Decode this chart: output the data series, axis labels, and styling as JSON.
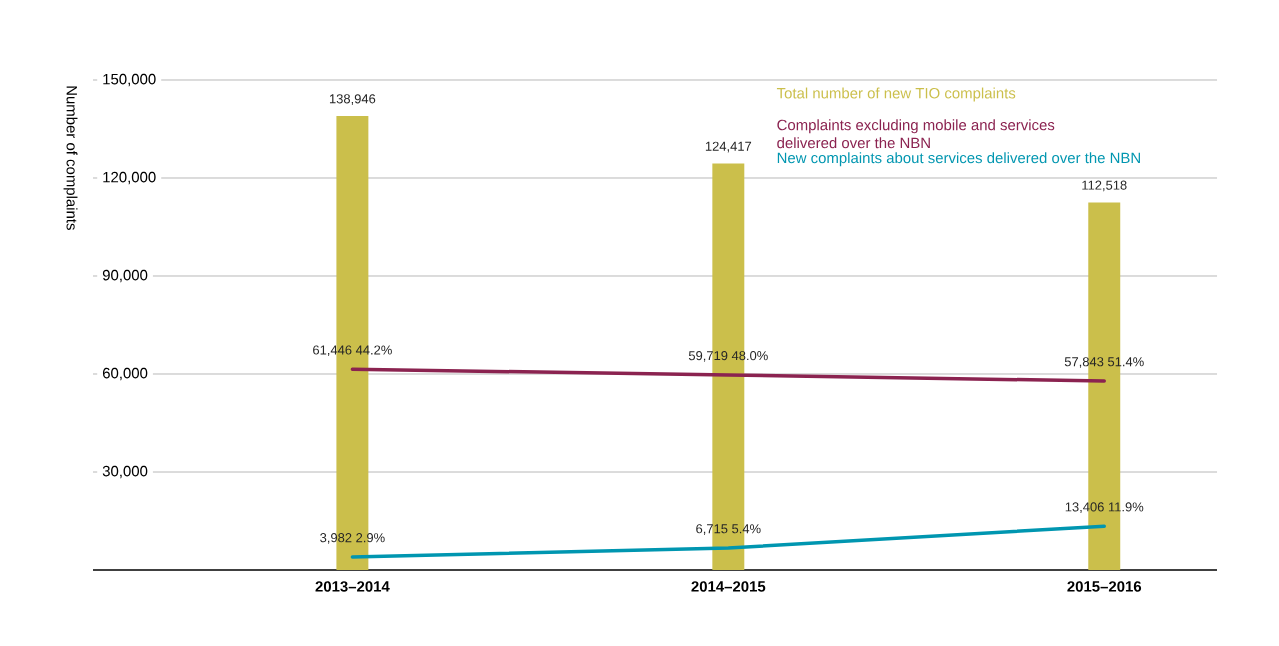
{
  "chart_data": {
    "type": "bar",
    "ylabel": "Number of complaints",
    "categories": [
      "2013–2014",
      "2014–2015",
      "2015–2016"
    ],
    "series": [
      {
        "name": "Total number of new TIO complaints",
        "color": "#cbbf4b",
        "values": [
          138946,
          124417,
          112518
        ],
        "value_labels": [
          "138,946",
          "124,417",
          "112,518"
        ]
      },
      {
        "name": "Complaints excluding mobile and services delivered over the NBN",
        "type": "line",
        "color": "#8b2350",
        "values": [
          61446,
          59719,
          57843
        ],
        "value_labels": [
          "61,446  44.2%",
          "59,719  48.0%",
          "57,843  51.4%"
        ]
      },
      {
        "name": "New complaints about services delivered over the NBN",
        "type": "line",
        "color": "#0096b0",
        "values": [
          3982,
          6715,
          13406
        ],
        "value_labels": [
          "3,982  2.9%",
          "6,715  5.4%",
          "13,406  11.9%"
        ]
      }
    ],
    "ylim": [
      0,
      150000
    ],
    "yticks": [
      {
        "value": 30000,
        "label": "30,000"
      },
      {
        "value": 60000,
        "label": "60,000"
      },
      {
        "value": 90000,
        "label": "90,000"
      },
      {
        "value": 120000,
        "label": "120,000"
      },
      {
        "value": 150000,
        "label": "150,000"
      }
    ],
    "grid": "y",
    "legend": "top right"
  }
}
